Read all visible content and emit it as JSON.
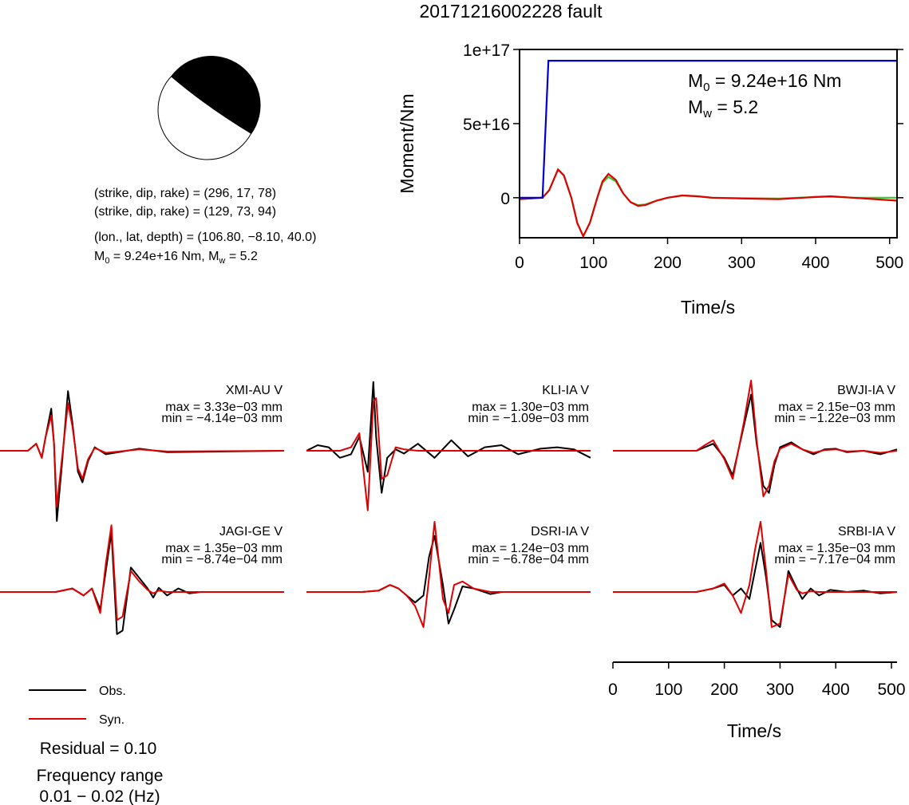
{
  "title": "20171216002228 fault",
  "beachball": {
    "np1": "(strike, dip, rake) = (296, 17, 78)",
    "np2": "(strike, dip, rake) = (129, 73, 94)",
    "location": "(lon., lat, depth) = (106.80, −8.10, 40.0)",
    "moment_prefix": "M",
    "moment_sub": "0",
    "moment_value": " = 9.24e+16 Nm, M",
    "mw_sub": "w",
    "mw_value": " = 5.2"
  },
  "stf_annotation": {
    "m0_symbol": "M",
    "m0_sub": "0",
    "m0_value": " = 9.24e+16 Nm",
    "mw_symbol": "M",
    "mw_sub": "w",
    "mw_value": " = 5.2"
  },
  "stations": [
    {
      "name": "XMI-AU V",
      "max": "max = 3.33e−03 mm",
      "min": "min = −4.14e−03 mm"
    },
    {
      "name": "KLI-IA V",
      "max": "max = 1.30e−03 mm",
      "min": "min = −1.09e−03 mm"
    },
    {
      "name": "BWJI-IA V",
      "max": "max = 2.15e−03 mm",
      "min": "min = −1.22e−03 mm"
    },
    {
      "name": "JAGI-GE V",
      "max": "max = 1.35e−03 mm",
      "min": "min = −8.74e−04 mm"
    },
    {
      "name": "DSRI-IA V",
      "max": "max = 1.24e−03 mm",
      "min": "min = −6.78e−04 mm"
    },
    {
      "name": "SRBI-IA V",
      "max": "max = 1.35e−03 mm",
      "min": "min = −7.17e−04 mm"
    }
  ],
  "legend": {
    "obs": "Obs.",
    "syn": "Syn."
  },
  "residual": "Residual = 0.10",
  "freq_title": "Frequency range",
  "freq_value": "0.01 − 0.02 (Hz)",
  "colors": {
    "obs": "#000000",
    "syn": "#e00000",
    "moment": "#0000cc",
    "stf_green": "#33cc33"
  },
  "chart_data": [
    {
      "type": "line",
      "xlabel": "Time/s",
      "ylabel": "Moment/Nm",
      "xlim": [
        0,
        510
      ],
      "ylim": [
        -27000000000000000,
        100000000000000000
      ],
      "xticks": [
        0,
        100,
        200,
        300,
        400,
        500
      ],
      "xtick_labels": [
        "0",
        "100",
        "200",
        "300",
        "400",
        "500"
      ],
      "yticks": [
        0,
        50000000000000000,
        100000000000000000
      ],
      "ytick_labels": [
        "0",
        "5e+16",
        "1e+17"
      ],
      "grid": false,
      "series": [
        {
          "color": "#0000cc",
          "x": [
            0,
            31,
            39,
            510
          ],
          "y": [
            0,
            0,
            92400000000000000,
            92400000000000000
          ]
        },
        {
          "color": "#e00000",
          "x": [
            0,
            31,
            40,
            52,
            60,
            70,
            78,
            86,
            95,
            105,
            112,
            120,
            130,
            140,
            150,
            160,
            170,
            185,
            200,
            220,
            240,
            260,
            300,
            350,
            400,
            420,
            450,
            510
          ],
          "y": [
            -1000000000000000,
            0,
            5000000000000000,
            19000000000000000,
            15000000000000000,
            0,
            -17000000000000000,
            -26000000000000000,
            -17000000000000000,
            0,
            11000000000000000,
            16000000000000000,
            12000000000000000,
            3000000000000000,
            -3000000000000000,
            -5500000000000000,
            -5000000000000000,
            -2000000000000000,
            0,
            1500000000000000,
            1000000000000000,
            0,
            -500000000000000,
            -1000000000000000,
            500000000000000,
            1000000000000000,
            0,
            -2000000000000000
          ]
        },
        {
          "color": "#33cc33",
          "x": [
            0,
            31,
            40,
            52,
            60,
            70,
            78,
            86,
            95,
            105,
            112,
            120,
            130,
            140,
            150,
            160,
            170,
            185,
            200,
            220,
            240,
            260,
            300,
            350,
            400,
            420,
            450,
            510
          ],
          "y": [
            -1000000000000000,
            0,
            5000000000000000,
            19000000000000000,
            15000000000000000,
            0,
            -17000000000000000,
            -26000000000000000,
            -17000000000000000,
            0,
            10000000000000000,
            14000000000000000,
            11000000000000000,
            3000000000000000,
            -3000000000000000,
            -5000000000000000,
            -4500000000000000,
            -2000000000000000,
            0,
            1500000000000000,
            1000000000000000,
            0,
            -300000000000000,
            -500000000000000,
            500000000000000,
            700000000000000,
            0,
            0
          ]
        }
      ]
    },
    {
      "type": "line",
      "xlabel": "Time/s",
      "xlim": [
        0,
        510
      ],
      "xticks": [
        0,
        100,
        200,
        300,
        400,
        500
      ],
      "xtick_labels": [
        "0",
        "100",
        "200",
        "300",
        "400",
        "500"
      ],
      "ylim": [
        -1,
        1
      ],
      "panels": [
        {
          "station": "XMI-AU V",
          "obs": {
            "x": [
              0,
              50,
              65,
              75,
              82,
              92,
              97,
              102,
              110,
              122,
              130,
              140,
              148,
              158,
              170,
              190,
              250,
              300,
              510
            ],
            "y": [
              0,
              0,
              0.1,
              -0.1,
              0.2,
              0.6,
              0.1,
              -1.0,
              -0.3,
              0.85,
              0.4,
              -0.3,
              -0.45,
              -0.15,
              0.05,
              -0.05,
              0.03,
              -0.02,
              0
            ]
          },
          "syn": {
            "x": [
              0,
              50,
              65,
              75,
              82,
              92,
              97,
              102,
              110,
              122,
              130,
              140,
              148,
              158,
              170,
              190,
              250,
              300,
              510
            ],
            "y": [
              0,
              0,
              0.1,
              -0.1,
              0.2,
              0.5,
              0.1,
              -0.8,
              -0.2,
              0.68,
              0.35,
              -0.25,
              -0.4,
              -0.12,
              0.04,
              -0.03,
              0.02,
              -0.01,
              0
            ]
          }
        },
        {
          "station": "KLI-IA V",
          "obs": {
            "x": [
              0,
              20,
              40,
              60,
              80,
              95,
              110,
              120,
              125,
              135,
              145,
              160,
              175,
              200,
              230,
              260,
              290,
              320,
              350,
              380,
              420,
              450,
              480,
              510
            ],
            "y": [
              0,
              0.08,
              0.05,
              -0.1,
              -0.05,
              0.2,
              -0.3,
              0.98,
              0.2,
              -0.6,
              -0.1,
              0.02,
              -0.04,
              0.1,
              -0.1,
              0.15,
              -0.08,
              0.05,
              0.08,
              -0.05,
              0.03,
              0.05,
              0.02,
              -0.1
            ]
          },
          "syn": {
            "x": [
              0,
              20,
              40,
              60,
              80,
              95,
              110,
              120,
              125,
              135,
              145,
              160,
              175,
              200,
              230,
              260,
              290,
              320,
              350,
              380,
              420,
              450,
              480,
              510
            ],
            "y": [
              0,
              0,
              0,
              0,
              0.05,
              0.25,
              -0.85,
              0.7,
              0.75,
              -0.4,
              -0.35,
              0.05,
              0.02,
              0,
              0,
              0,
              0,
              0,
              0,
              0,
              0,
              0,
              0,
              0
            ]
          }
        },
        {
          "station": "BWJI-IA V",
          "obs": {
            "x": [
              0,
              50,
              100,
              150,
              165,
              180,
              200,
              215,
              235,
              248,
              258,
              270,
              280,
              290,
              300,
              320,
              340,
              360,
              380,
              400,
              420,
              450,
              480,
              510
            ],
            "y": [
              0,
              0,
              0,
              0,
              0.05,
              0.1,
              -0.1,
              -0.35,
              0.35,
              0.8,
              0.1,
              -0.5,
              -0.6,
              -0.2,
              0.05,
              0.12,
              0.02,
              -0.05,
              0.02,
              0.03,
              -0.02,
              0,
              -0.05,
              0.02
            ]
          },
          "syn": {
            "x": [
              0,
              50,
              100,
              150,
              165,
              180,
              200,
              215,
              235,
              248,
              258,
              270,
              280,
              290,
              300,
              320,
              340,
              360,
              380,
              400,
              420,
              450,
              480,
              510
            ],
            "y": [
              0,
              0,
              0,
              0,
              0.08,
              0.15,
              -0.12,
              -0.4,
              0.4,
              1.0,
              0.15,
              -0.65,
              -0.5,
              -0.15,
              0.03,
              0.1,
              0.02,
              -0.03,
              0.01,
              0.02,
              -0.01,
              0,
              -0.03,
              0
            ]
          }
        },
        {
          "station": "JAGI-GE V",
          "obs": {
            "x": [
              0,
              50,
              100,
              130,
              150,
              165,
              180,
              190,
              200,
              210,
              220,
              235,
              250,
              265,
              275,
              285,
              300,
              320,
              340,
              360,
              400,
              450,
              510
            ],
            "y": [
              0,
              0,
              0,
              0.05,
              -0.05,
              0.05,
              -0.25,
              0.3,
              0.85,
              -0.6,
              -0.55,
              0.35,
              0.2,
              0.05,
              -0.08,
              0.06,
              -0.05,
              0.05,
              -0.02,
              0,
              0,
              0,
              0
            ]
          },
          "syn": {
            "x": [
              0,
              50,
              100,
              130,
              150,
              165,
              180,
              190,
              200,
              210,
              220,
              235,
              250,
              265,
              275,
              285,
              300,
              320,
              340,
              360,
              400,
              450,
              510
            ],
            "y": [
              0,
              0,
              0,
              0.05,
              -0.05,
              0.05,
              -0.3,
              0.4,
              0.95,
              -0.4,
              -0.35,
              0.3,
              0.15,
              0.03,
              -0.02,
              0.02,
              0,
              0,
              0,
              0,
              0,
              0,
              0
            ]
          }
        },
        {
          "station": "DSRI-IA V",
          "obs": {
            "x": [
              0,
              50,
              100,
              130,
              150,
              165,
              180,
              195,
              210,
              220,
              230,
              245,
              255,
              265,
              280,
              300,
              330,
              350,
              380,
              420,
              470,
              510
            ],
            "y": [
              0,
              0,
              0,
              0.02,
              0.1,
              0.05,
              -0.05,
              -0.15,
              -0.05,
              0.5,
              0.8,
              0.1,
              -0.45,
              -0.25,
              0.08,
              0.05,
              -0.03,
              0,
              0,
              0,
              0,
              0
            ]
          },
          "syn": {
            "x": [
              0,
              50,
              100,
              130,
              150,
              165,
              180,
              195,
              210,
              220,
              230,
              245,
              255,
              265,
              280,
              300,
              330,
              350,
              380,
              420,
              470,
              510
            ],
            "y": [
              0,
              0,
              0,
              0.02,
              0.1,
              0.05,
              -0.05,
              -0.2,
              -0.5,
              0.2,
              1.0,
              -0.1,
              -0.3,
              0.1,
              0.15,
              0.05,
              0,
              0,
              0,
              0,
              0,
              0
            ]
          }
        },
        {
          "station": "SRBI-IA V",
          "obs": {
            "x": [
              0,
              50,
              100,
              150,
              180,
              200,
              215,
              230,
              245,
              255,
              265,
              275,
              285,
              300,
              315,
              330,
              340,
              355,
              370,
              390,
              420,
              450,
              480,
              510
            ],
            "y": [
              0,
              0,
              0,
              0,
              0.05,
              0.1,
              -0.05,
              0.05,
              -0.1,
              0.3,
              0.7,
              0.2,
              -0.4,
              -0.5,
              0.3,
              0.05,
              -0.1,
              0.05,
              -0.05,
              0.03,
              0,
              0.02,
              -0.02,
              0
            ]
          },
          "syn": {
            "x": [
              0,
              50,
              100,
              150,
              180,
              200,
              215,
              230,
              245,
              255,
              265,
              275,
              285,
              300,
              315,
              330,
              340,
              355,
              370,
              390,
              420,
              450,
              480,
              510
            ],
            "y": [
              0,
              0,
              0,
              0,
              0.05,
              0.12,
              -0.05,
              -0.3,
              0.1,
              0.6,
              1.0,
              0.3,
              -0.5,
              -0.45,
              0.25,
              0.03,
              -0.02,
              0.01,
              0,
              0,
              0,
              0,
              0,
              0
            ]
          }
        }
      ]
    }
  ]
}
